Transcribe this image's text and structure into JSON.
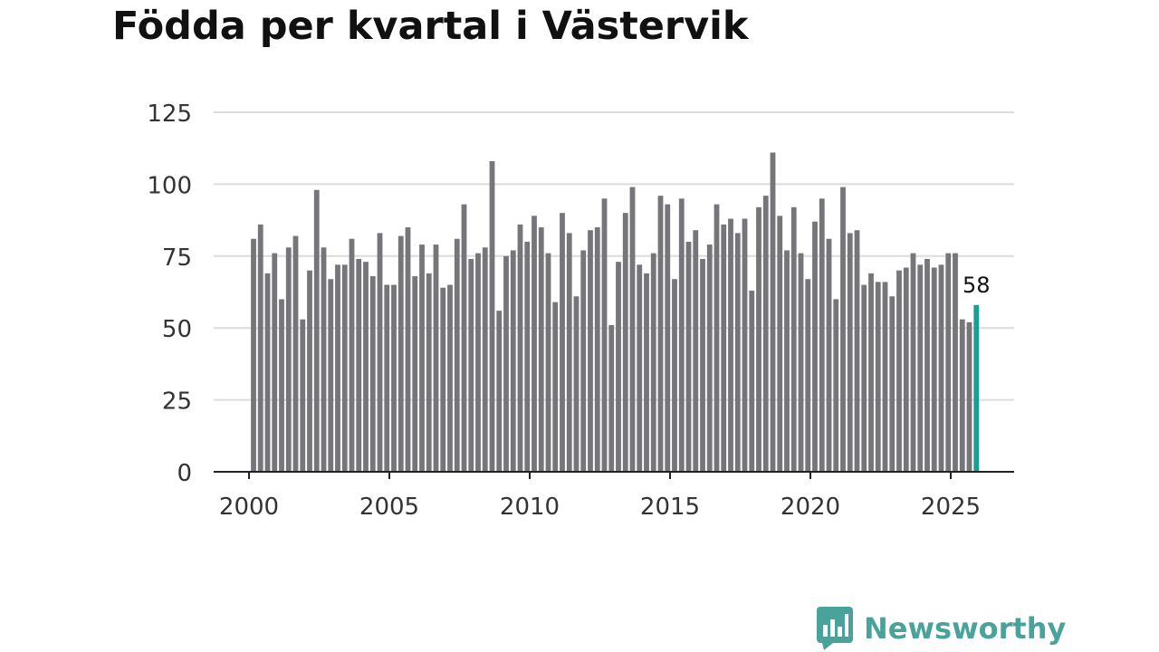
{
  "chart_data": {
    "type": "bar",
    "title": "Födda per kvartal i Västervik",
    "xlabel": "",
    "ylabel": "",
    "ylim": [
      0,
      125
    ],
    "yticks": [
      "0",
      "25",
      "50",
      "75",
      "100",
      "125"
    ],
    "xticks": [
      "2000",
      "2005",
      "2010",
      "2015",
      "2020",
      "2025"
    ],
    "grid": true,
    "start_year": 2000,
    "values": [
      81,
      86,
      69,
      76,
      60,
      78,
      82,
      53,
      70,
      98,
      78,
      67,
      72,
      72,
      81,
      74,
      73,
      68,
      83,
      65,
      65,
      82,
      85,
      68,
      79,
      69,
      79,
      64,
      65,
      81,
      93,
      74,
      76,
      78,
      108,
      56,
      75,
      77,
      86,
      80,
      89,
      85,
      76,
      59,
      90,
      83,
      61,
      77,
      84,
      85,
      95,
      51,
      73,
      90,
      99,
      72,
      69,
      76,
      96,
      93,
      67,
      95,
      80,
      84,
      74,
      79,
      93,
      86,
      88,
      83,
      88,
      63,
      92,
      96,
      111,
      89,
      77,
      92,
      76,
      67,
      87,
      95,
      81,
      60,
      99,
      83,
      84,
      65,
      69,
      66,
      66,
      61,
      70,
      71,
      76,
      72,
      74,
      71,
      72,
      76,
      76,
      53,
      52,
      58
    ],
    "highlight": {
      "index": 103,
      "label": "58",
      "color": "#1a9e94"
    },
    "bar_color": "#76757a"
  },
  "brand": {
    "name": "Newsworthy",
    "icon": "bar-chart-bubble-icon",
    "color": "#4aa39a"
  }
}
